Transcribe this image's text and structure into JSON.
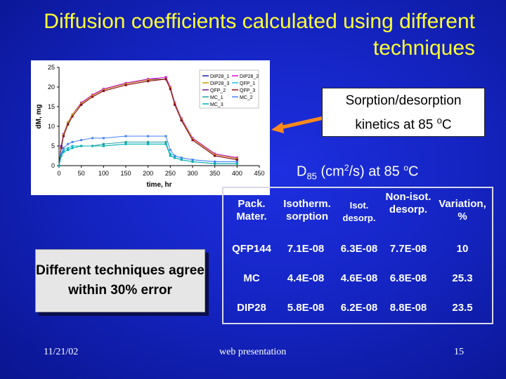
{
  "slide": {
    "title": "Diffusion coefficients calculated using different techniques",
    "callout_kinetics": "Sorption/desorption kinetics at 85 ",
    "callout_kinetics_deg": "o",
    "callout_kinetics_unit": "C",
    "d85_main": "D",
    "d85_sub": "85",
    "d85_unit": " (cm",
    "d85_sup2": "2",
    "d85_rest": "/s) at 85 ",
    "d85_deg": "o",
    "d85_c": "C",
    "agree_note": "Different techniques agree within 30% error",
    "footer_date": "11/21/02",
    "footer_center": "web presentation",
    "footer_page": "15"
  },
  "table": {
    "headers": [
      "Pack. Mater.",
      "Isotherm. sorption",
      "Isot. desorp.",
      "Non-isot. desorp.",
      "Variation, %"
    ],
    "rows": [
      [
        "QFP144",
        "7.1E-08",
        "6.3E-08",
        "7.7E-08",
        "10"
      ],
      [
        "MC",
        "4.4E-08",
        "4.6E-08",
        "6.8E-08",
        "25.3"
      ],
      [
        "DIP28",
        "5.8E-08",
        "6.2E-08",
        "8.8E-08",
        "23.5"
      ]
    ]
  },
  "chart_data": {
    "type": "line",
    "xlabel": "time, hr",
    "ylabel": "dM, mg",
    "xlim": [
      0,
      450
    ],
    "ylim": [
      0,
      25
    ],
    "xticks": [
      0,
      50,
      100,
      150,
      200,
      250,
      300,
      350,
      400,
      450
    ],
    "yticks": [
      0,
      5,
      10,
      15,
      20,
      25
    ],
    "legend_position": "top-right",
    "series": [
      {
        "name": "DIP28_1",
        "color": "#1a1aa0",
        "x": [
          0,
          5,
          10,
          20,
          30,
          50,
          75,
          100,
          150,
          200,
          240,
          250,
          260,
          275,
          300,
          350,
          400
        ],
        "y": [
          0,
          5,
          8,
          11,
          13,
          16,
          18,
          19.5,
          21,
          22,
          22,
          20,
          16,
          12,
          7,
          3,
          2
        ]
      },
      {
        "name": "DIP28_2",
        "color": "#e000e0",
        "x": [
          0,
          5,
          10,
          20,
          30,
          50,
          75,
          100,
          150,
          200,
          240,
          250,
          260,
          275,
          300,
          350,
          400
        ],
        "y": [
          0,
          5,
          8,
          11,
          13,
          16,
          18,
          19.5,
          21,
          22,
          22.5,
          20,
          16,
          12,
          7,
          3,
          2
        ]
      },
      {
        "name": "DIP28_3",
        "color": "#c8a000",
        "x": [
          0,
          5,
          10,
          20,
          30,
          50,
          75,
          100,
          150,
          200,
          240,
          250,
          260,
          275,
          300,
          350,
          400
        ],
        "y": [
          0,
          5,
          7.8,
          11,
          13,
          15.8,
          17.8,
          19.3,
          20.8,
          21.8,
          22,
          19.8,
          15.8,
          11.8,
          6.8,
          2.8,
          1.8
        ]
      },
      {
        "name": "QFP_1",
        "color": "#20c0e0",
        "x": [
          0,
          5,
          10,
          20,
          30,
          50,
          75,
          100,
          150,
          200,
          240,
          250,
          260,
          275,
          300,
          350,
          400
        ],
        "y": [
          0,
          3,
          4,
          4.5,
          5,
          5,
          5,
          5,
          5.5,
          5.5,
          5.5,
          3,
          2.5,
          2,
          1.5,
          1,
          1
        ]
      },
      {
        "name": "QFP_2",
        "color": "#6a1a9a",
        "x": [
          0,
          5,
          10,
          20,
          30,
          50,
          75,
          100,
          150,
          200,
          240,
          250,
          260,
          275,
          300,
          350,
          400
        ],
        "y": [
          0,
          5,
          7.5,
          10.5,
          12.5,
          15.5,
          17.5,
          19,
          20.5,
          21.5,
          22,
          19.5,
          15.5,
          11.5,
          6.5,
          2.5,
          1.5
        ]
      },
      {
        "name": "QFP_3",
        "color": "#8a1010",
        "x": [
          0,
          5,
          10,
          20,
          30,
          50,
          75,
          100,
          150,
          200,
          240,
          250,
          260,
          275,
          300,
          350,
          400
        ],
        "y": [
          0,
          4.5,
          7.5,
          10.5,
          12.5,
          15.5,
          17.5,
          19,
          20.5,
          21.5,
          22,
          19.5,
          15.5,
          11.5,
          6.5,
          2.5,
          1.5
        ]
      },
      {
        "name": "MC_1",
        "color": "#20a0a0",
        "x": [
          0,
          5,
          10,
          20,
          30,
          50,
          75,
          100,
          150,
          200,
          240,
          250,
          260,
          275,
          300,
          350,
          400
        ],
        "y": [
          0,
          2.5,
          3.5,
          4,
          4.5,
          5,
          5,
          5.5,
          6,
          6,
          6,
          2.5,
          2,
          1.5,
          1,
          0.5,
          0.5
        ]
      },
      {
        "name": "MC_2",
        "color": "#4a80ff",
        "x": [
          0,
          5,
          10,
          20,
          30,
          50,
          75,
          100,
          150,
          200,
          240,
          250,
          260,
          275,
          300,
          350,
          400
        ],
        "y": [
          0,
          3,
          4.5,
          5.5,
          6,
          6.5,
          7,
          7,
          7.5,
          7.5,
          7.5,
          4,
          2.5,
          2,
          1.5,
          1,
          1
        ]
      },
      {
        "name": "MC_3",
        "color": "#00b0b0",
        "x": [
          0,
          5,
          10,
          20,
          30,
          50,
          75,
          100,
          150,
          200,
          240,
          250,
          260,
          275,
          300,
          350,
          400
        ],
        "y": [
          0,
          2.5,
          3.5,
          4,
          4.5,
          5,
          5,
          5,
          5.5,
          5.5,
          5.5,
          2.5,
          2,
          1.5,
          1,
          0.5,
          0.5
        ]
      }
    ]
  }
}
